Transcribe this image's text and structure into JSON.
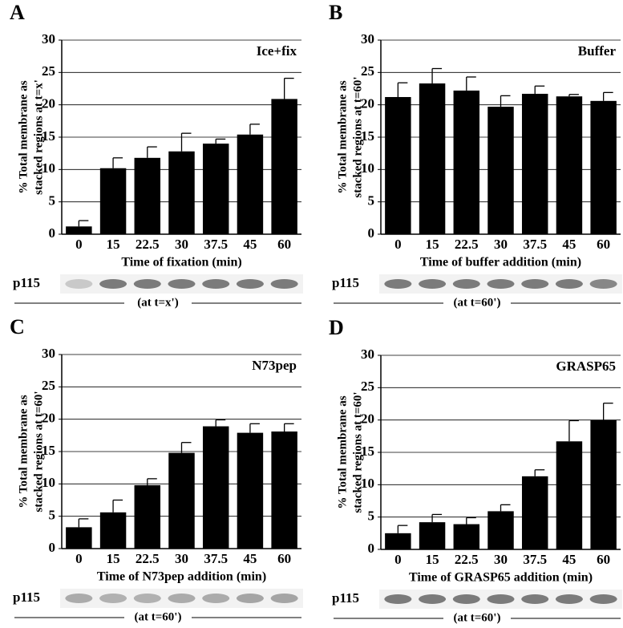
{
  "chart_data": [
    {
      "type": "bar",
      "panel": "A",
      "annotation": "Ice+fix",
      "ylabel": [
        "% Total membrane as",
        "stacked regions at t=x'"
      ],
      "xlabel": "Time of fixation (min)",
      "categories": [
        "0",
        "15",
        "22.5",
        "30",
        "37.5",
        "45",
        "60"
      ],
      "values": [
        1.2,
        10.2,
        11.8,
        12.8,
        14.0,
        15.4,
        20.9
      ],
      "errors": [
        0.9,
        1.6,
        1.7,
        2.8,
        0.7,
        1.6,
        3.2
      ],
      "color": "#000000",
      "ylim": [
        0,
        30
      ],
      "yticks": [
        0,
        5,
        10,
        15,
        20,
        25,
        30
      ],
      "grid": true,
      "blot_label": "p115",
      "blot_caption": "(at t=x')"
    },
    {
      "type": "bar",
      "panel": "B",
      "annotation": "Buffer",
      "ylabel": [
        "% Total membrane as",
        "stacked regions at t=60'"
      ],
      "xlabel": "Time of buffer addition (min)",
      "categories": [
        "0",
        "15",
        "22.5",
        "30",
        "37.5",
        "45",
        "60"
      ],
      "values": [
        21.2,
        23.3,
        22.2,
        19.7,
        21.7,
        21.3,
        20.6
      ],
      "errors": [
        2.2,
        2.3,
        2.1,
        1.7,
        1.2,
        0.3,
        1.3
      ],
      "color": "#000000",
      "ylim": [
        0,
        30
      ],
      "yticks": [
        0,
        5,
        10,
        15,
        20,
        25,
        30
      ],
      "grid": true,
      "blot_label": "p115",
      "blot_caption": "(at t=60')"
    },
    {
      "type": "bar",
      "panel": "C",
      "annotation": "N73pep",
      "ylabel": [
        "% Total membrane as",
        "stacked regions at t=60'"
      ],
      "xlabel": "Time of N73pep addition (min)",
      "categories": [
        "0",
        "15",
        "22.5",
        "30",
        "37.5",
        "45",
        "60"
      ],
      "values": [
        3.3,
        5.6,
        9.8,
        14.8,
        18.9,
        17.9,
        18.1
      ],
      "errors": [
        1.3,
        1.9,
        1.0,
        1.6,
        1.0,
        1.4,
        1.2
      ],
      "color": "#000000",
      "ylim": [
        0,
        30
      ],
      "yticks": [
        0,
        5,
        10,
        15,
        20,
        25,
        30
      ],
      "grid": true,
      "blot_label": "p115",
      "blot_caption": "(at t=60')"
    },
    {
      "type": "bar",
      "panel": "D",
      "annotation": "GRASP65",
      "ylabel": [
        "% Total membrane as",
        "stacked regions at t=60'"
      ],
      "xlabel": "Time of GRASP65 addition (min)",
      "categories": [
        "0",
        "15",
        "22.5",
        "30",
        "37.5",
        "45",
        "60"
      ],
      "values": [
        2.5,
        4.2,
        3.9,
        5.9,
        11.3,
        16.7,
        20.0
      ],
      "errors": [
        1.2,
        1.2,
        1.0,
        1.0,
        1.0,
        3.2,
        2.6
      ],
      "color": "#000000",
      "ylim": [
        0,
        30
      ],
      "yticks": [
        0,
        5,
        10,
        15,
        20,
        25,
        30
      ],
      "grid": true,
      "blot_label": "p115",
      "blot_caption": "(at t=60')"
    }
  ]
}
